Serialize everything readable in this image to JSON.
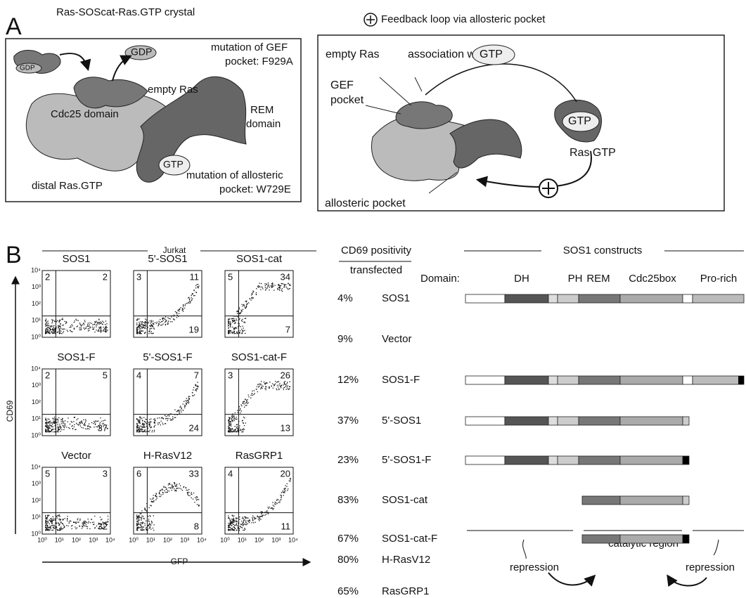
{
  "panel_a": {
    "label": "A",
    "left": {
      "title": "Ras-SOScat-Ras.GTP crystal",
      "labels": [
        "GDP",
        "GDP",
        "mutation of GEF",
        "pocket: F929A",
        "empty Ras",
        "REM",
        "domain",
        "Cdc25 domain",
        "GTP",
        "distal Ras.GTP",
        "mutation of allosteric",
        "pocket: W729E"
      ]
    },
    "right": {
      "title": "Feedback loop via allosteric pocket",
      "labels": [
        "empty Ras",
        "association with",
        "GTP",
        "GEF",
        "pocket",
        "GTP",
        "Ras.GTP",
        "allosteric pocket"
      ]
    }
  },
  "panel_b": {
    "label": "B",
    "group": "Jurkat",
    "y_axis": "CD69",
    "x_axis": "GFP",
    "ticks": [
      "10⁰",
      "10¹",
      "10²",
      "10³",
      "10⁴"
    ],
    "plots": [
      {
        "title": "SOS1",
        "quadrants": [
          "2",
          "2",
          "44"
        ]
      },
      {
        "title": "5'-SOS1",
        "quadrants": [
          "3",
          "11",
          "19"
        ]
      },
      {
        "title": "SOS1-cat",
        "quadrants": [
          "5",
          "34",
          "7"
        ]
      },
      {
        "title": "SOS1-F",
        "quadrants": [
          "2",
          "5",
          "37"
        ]
      },
      {
        "title": "5'-SOS1-F",
        "quadrants": [
          "4",
          "7",
          "24"
        ]
      },
      {
        "title": "SOS1-cat-F",
        "quadrants": [
          "3",
          "26",
          "13"
        ]
      },
      {
        "title": "Vector",
        "quadrants": [
          "5",
          "3",
          "32"
        ]
      },
      {
        "title": "H-RasV12",
        "quadrants": [
          "6",
          "33",
          "8"
        ]
      },
      {
        "title": "RasGRP1",
        "quadrants": [
          "4",
          "20",
          "11"
        ]
      }
    ],
    "positivity": {
      "title": "CD69 positivity",
      "subtitle": "transfected",
      "rows": [
        [
          "4%",
          "SOS1"
        ],
        [
          "9%",
          "Vector"
        ],
        [
          "12%",
          "SOS1-F"
        ],
        [
          "37%",
          "5'-SOS1"
        ],
        [
          "23%",
          "5'-SOS1-F"
        ],
        [
          "83%",
          "SOS1-cat"
        ],
        [
          "67%",
          "SOS1-cat-F"
        ],
        [
          "80%",
          "H-RasV12"
        ],
        [
          "65%",
          "RasGRP1"
        ]
      ]
    },
    "constructs": {
      "title": "SOS1 constructs",
      "domain_label": "Domain:",
      "domains": [
        "DH",
        "PH",
        "REM",
        "Cdc25box",
        "Pro-rich"
      ],
      "region": "catalytic region",
      "notes": [
        "repression",
        "repression"
      ]
    }
  }
}
